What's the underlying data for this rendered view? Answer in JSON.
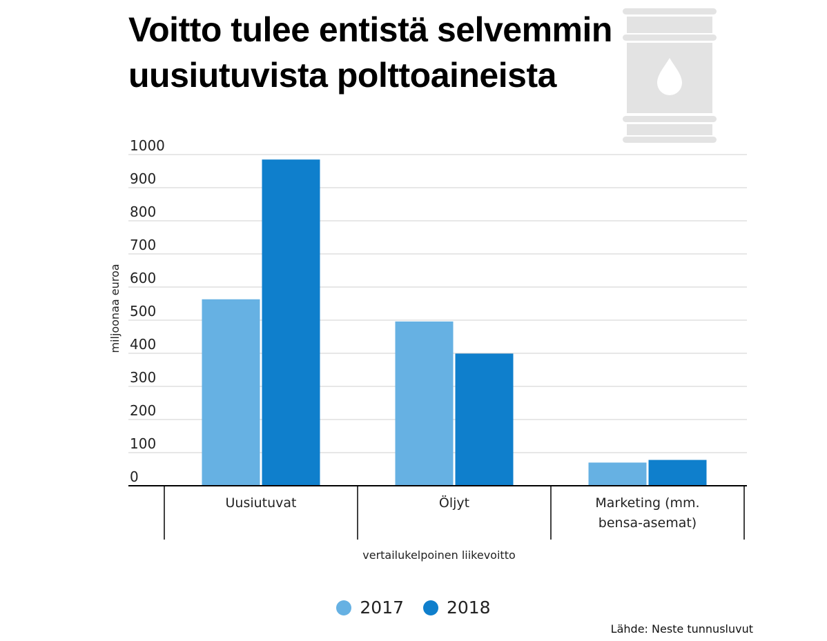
{
  "title": {
    "line1": "Voitto tulee entistä selvemmin",
    "line2": "uusiutuvista polttoaineista"
  },
  "icon": "oil-barrel-icon",
  "source": "Lähde: Neste tunnusluvut",
  "colors": {
    "series_2017": "#66b1e3",
    "series_2018": "#0f7fcc",
    "grid": "#cfcfcf",
    "axis": "#000000",
    "icon": "#e3e3e3"
  },
  "chart_data": {
    "type": "bar",
    "title": "Voitto tulee entistä selvemmin uusiutuvista polttoaineista",
    "categories": [
      {
        "line1": "Uusiutuvat",
        "line2": ""
      },
      {
        "line1": "Öljyt",
        "line2": ""
      },
      {
        "line1": "Marketing (mm.",
        "line2": "bensa-asemat)"
      }
    ],
    "series": [
      {
        "name": "2017",
        "values": [
          563,
          496,
          70
        ]
      },
      {
        "name": "2018",
        "values": [
          985,
          399,
          78
        ]
      }
    ],
    "xlabel": "vertailukelpoinen liikevoitto",
    "ylabel": "miljoonaa euroa",
    "ylim": [
      0,
      1000
    ],
    "yticks": [
      "0",
      "100",
      "200",
      "300",
      "400",
      "500",
      "600",
      "700",
      "800",
      "900",
      "1000"
    ],
    "grid": true,
    "legend": "bottom-center"
  }
}
